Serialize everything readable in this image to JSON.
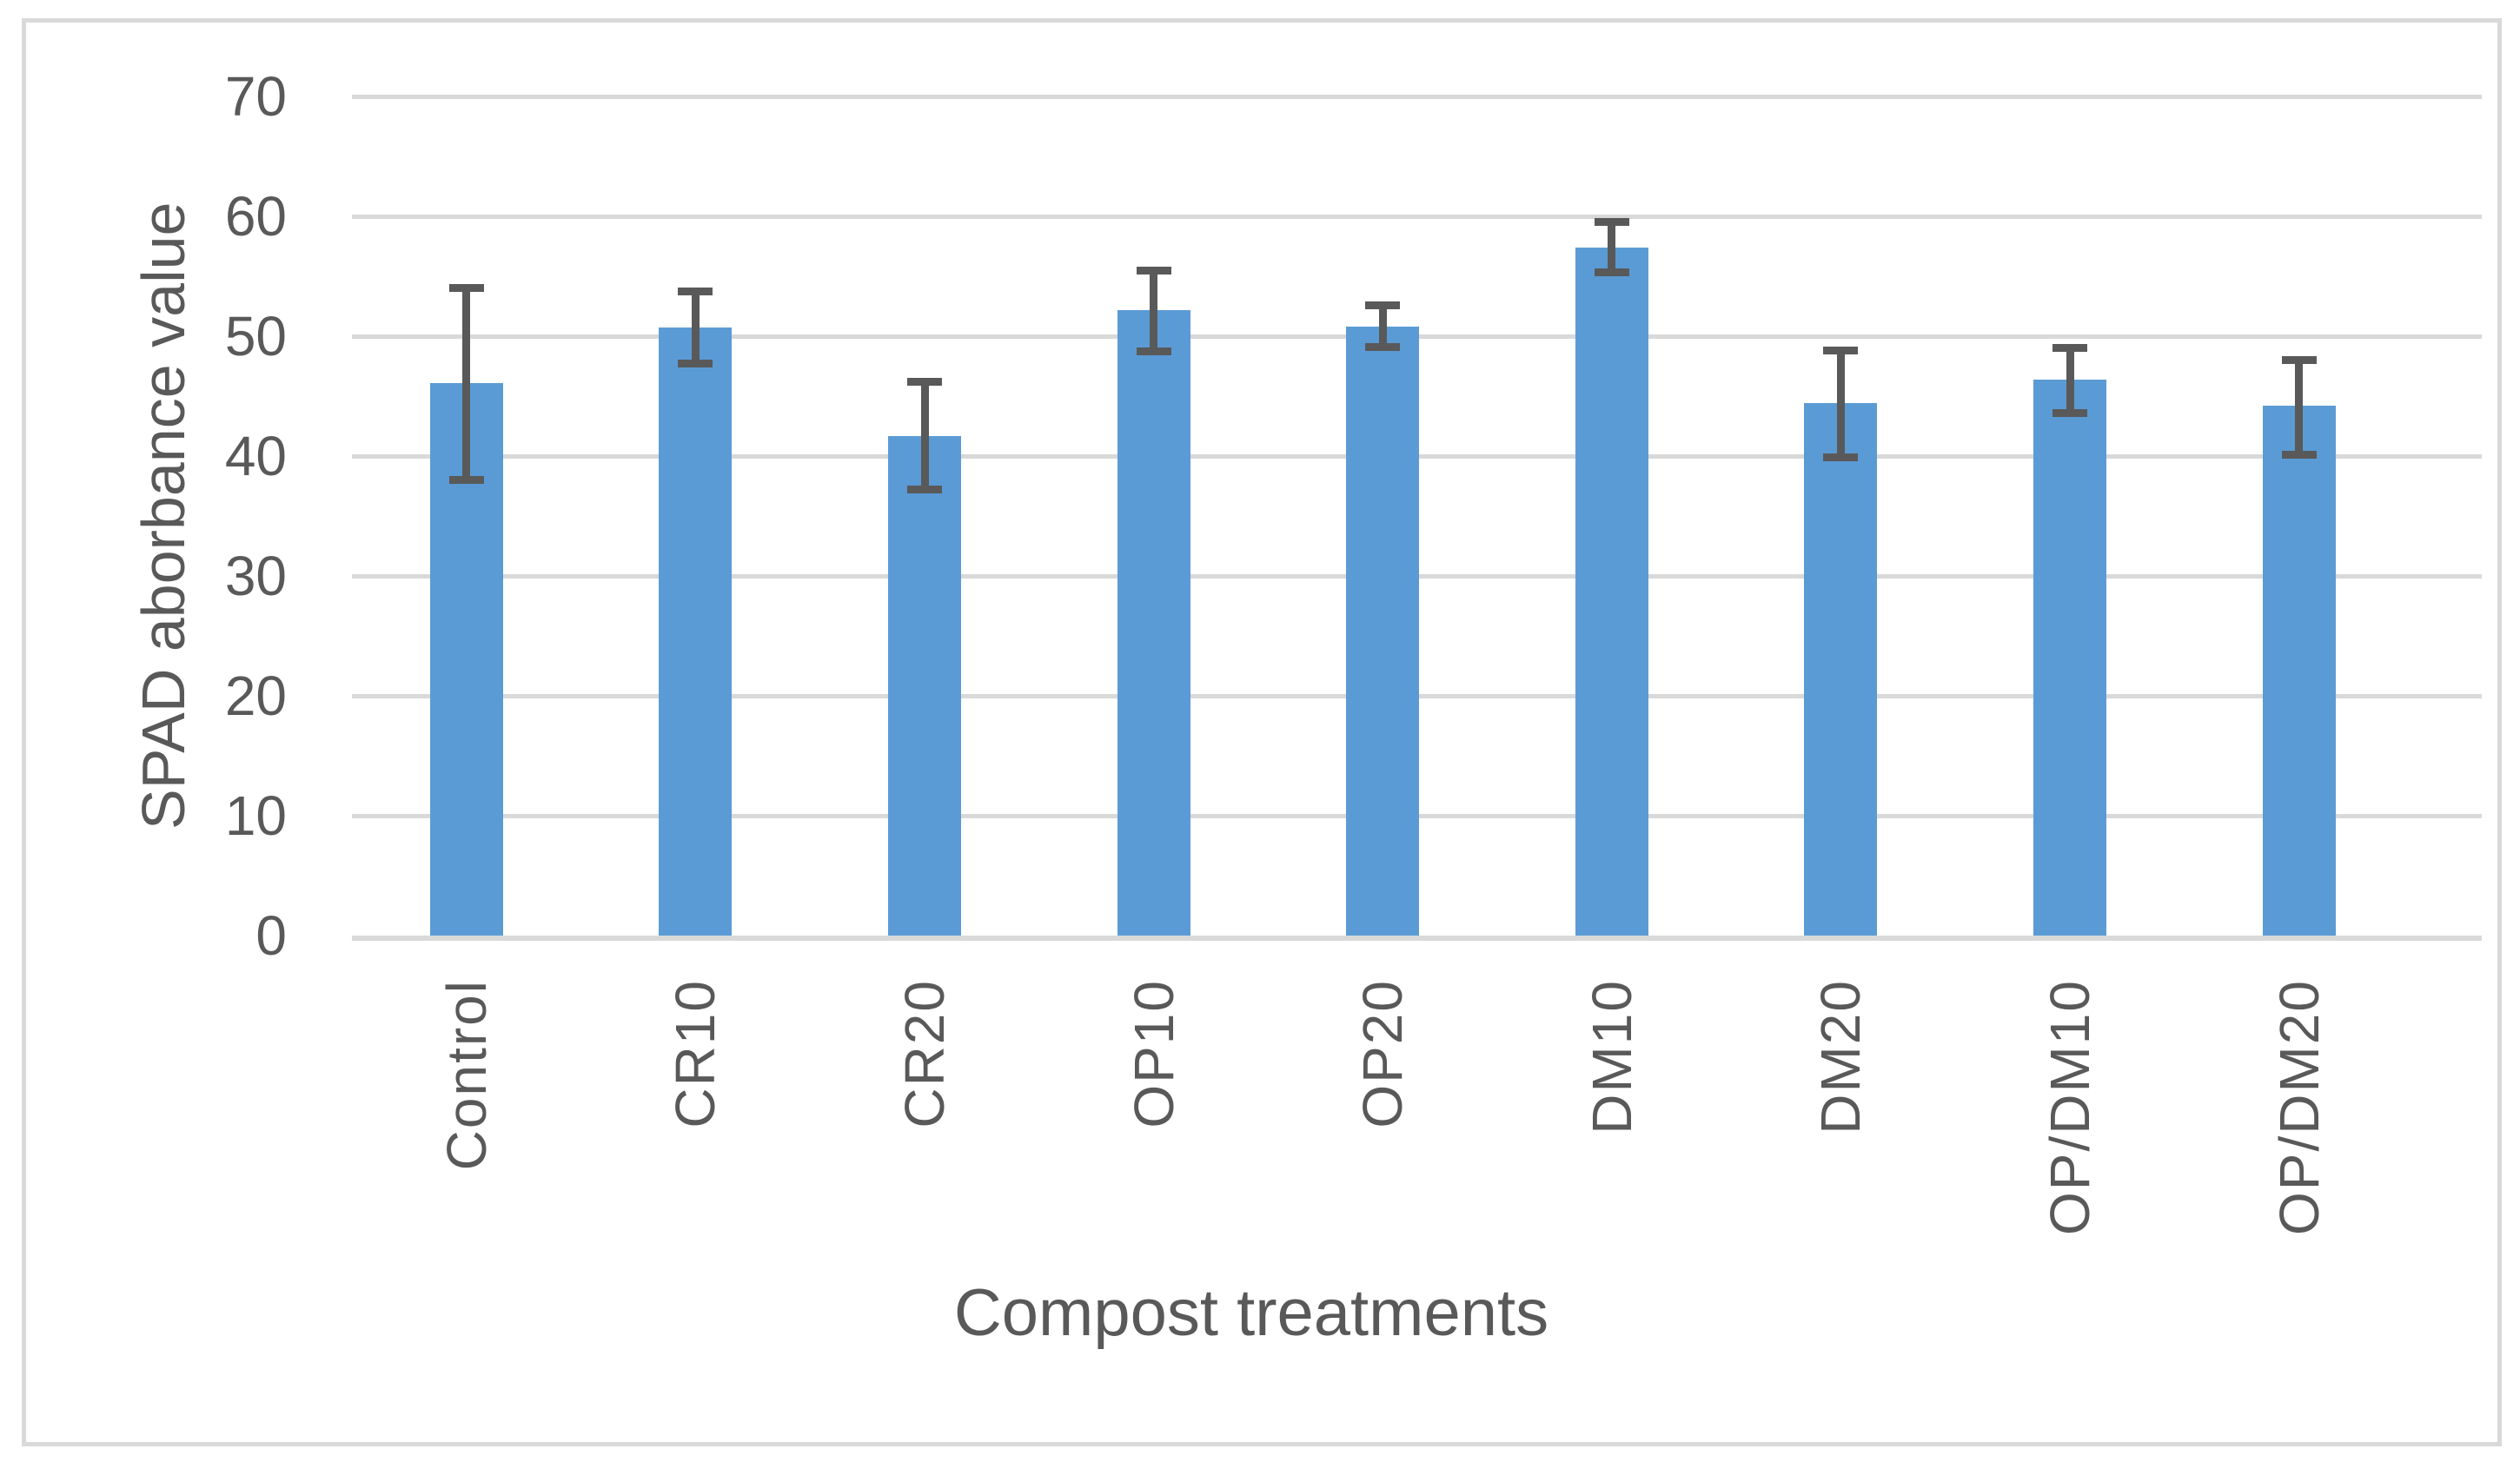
{
  "figure": {
    "background": "#ffffff",
    "border_color": "#d9d9d9"
  },
  "chart_data": {
    "type": "bar",
    "title": "",
    "xlabel": "Compost treatments",
    "ylabel": "SPAD aborbance value",
    "categories": [
      "Control",
      "CR10",
      "CR20",
      "OP10",
      "OP20",
      "DM10",
      "DM20",
      "OP/DM10",
      "OP/DM20"
    ],
    "values": [
      46.1,
      50.7,
      41.7,
      52.2,
      50.8,
      57.4,
      44.4,
      46.4,
      44.2
    ],
    "error_upper": [
      54.0,
      53.7,
      46.2,
      55.5,
      52.6,
      59.5,
      48.8,
      49.0,
      48.0
    ],
    "error_lower": [
      38.0,
      47.7,
      37.2,
      48.7,
      49.1,
      55.3,
      39.9,
      43.6,
      40.1
    ],
    "yticks": [
      0,
      10,
      20,
      30,
      40,
      50,
      60,
      70
    ],
    "ylim": [
      0,
      70
    ],
    "grid": true,
    "legend_position": "none",
    "bar_color": "#5b9bd5",
    "error_bar_color": "#595959",
    "gridline_color": "#d9d9d9",
    "axis_line_color": "#d9d9d9",
    "text_color": "#595959"
  }
}
